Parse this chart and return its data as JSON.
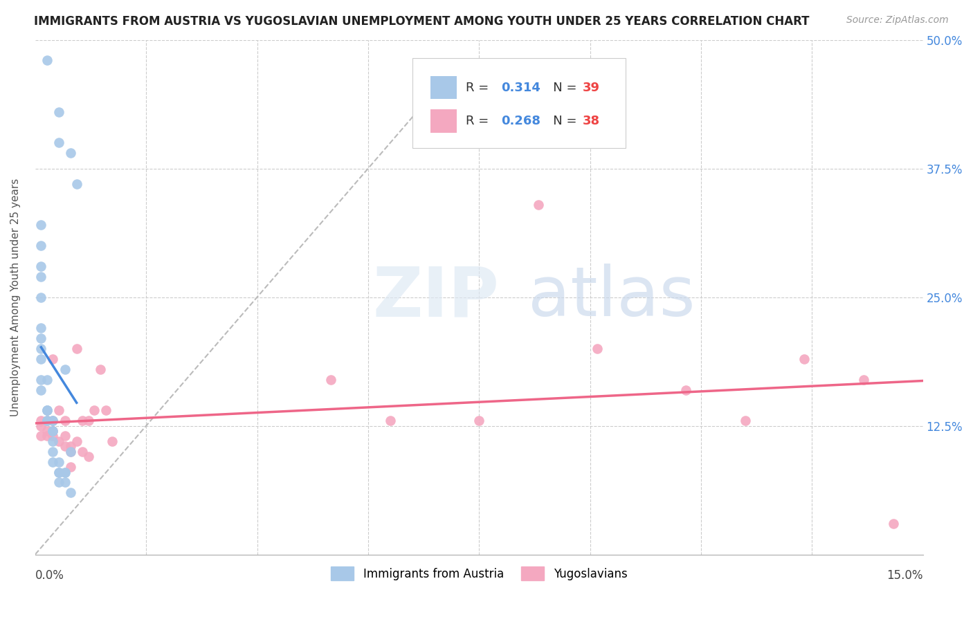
{
  "title": "IMMIGRANTS FROM AUSTRIA VS YUGOSLAVIAN UNEMPLOYMENT AMONG YOUTH UNDER 25 YEARS CORRELATION CHART",
  "source": "Source: ZipAtlas.com",
  "ylabel": "Unemployment Among Youth under 25 years",
  "legend_label1": "Immigrants from Austria",
  "legend_label2": "Yugoslavians",
  "color_austria": "#a8c8e8",
  "color_yugoslavia": "#f4a8c0",
  "color_line_austria": "#4488dd",
  "color_line_yugoslavia": "#ee6688",
  "color_trend_dashed": "#bbbbbb",
  "austria_x": [
    0.002,
    0.004,
    0.004,
    0.006,
    0.007,
    0.001,
    0.001,
    0.001,
    0.001,
    0.001,
    0.001,
    0.001,
    0.001,
    0.001,
    0.001,
    0.001,
    0.002,
    0.002,
    0.002,
    0.002,
    0.002,
    0.002,
    0.003,
    0.003,
    0.003,
    0.003,
    0.003,
    0.003,
    0.003,
    0.004,
    0.004,
    0.004,
    0.004,
    0.005,
    0.005,
    0.005,
    0.005,
    0.006,
    0.006
  ],
  "austria_y": [
    0.48,
    0.43,
    0.4,
    0.39,
    0.36,
    0.32,
    0.3,
    0.28,
    0.27,
    0.25,
    0.22,
    0.21,
    0.2,
    0.19,
    0.17,
    0.16,
    0.17,
    0.14,
    0.14,
    0.14,
    0.13,
    0.13,
    0.13,
    0.13,
    0.12,
    0.12,
    0.11,
    0.1,
    0.09,
    0.09,
    0.08,
    0.08,
    0.07,
    0.07,
    0.08,
    0.08,
    0.18,
    0.1,
    0.06
  ],
  "yugoslavia_x": [
    0.001,
    0.001,
    0.001,
    0.002,
    0.002,
    0.002,
    0.003,
    0.003,
    0.003,
    0.003,
    0.004,
    0.004,
    0.005,
    0.005,
    0.005,
    0.006,
    0.006,
    0.006,
    0.007,
    0.007,
    0.008,
    0.008,
    0.009,
    0.009,
    0.01,
    0.011,
    0.012,
    0.013,
    0.05,
    0.06,
    0.075,
    0.085,
    0.095,
    0.11,
    0.12,
    0.13,
    0.14,
    0.145
  ],
  "yugoslavia_y": [
    0.115,
    0.125,
    0.13,
    0.12,
    0.13,
    0.115,
    0.13,
    0.12,
    0.115,
    0.19,
    0.11,
    0.14,
    0.105,
    0.13,
    0.115,
    0.105,
    0.1,
    0.085,
    0.11,
    0.2,
    0.13,
    0.1,
    0.13,
    0.095,
    0.14,
    0.18,
    0.14,
    0.11,
    0.17,
    0.13,
    0.13,
    0.34,
    0.2,
    0.16,
    0.13,
    0.19,
    0.17,
    0.03
  ],
  "xmin": 0.0,
  "xmax": 0.15,
  "ymin": 0.0,
  "ymax": 0.5,
  "yticks": [
    0.0,
    0.125,
    0.25,
    0.375,
    0.5
  ],
  "ytick_labels": [
    "",
    "12.5%",
    "25.0%",
    "37.5%",
    "50.0%"
  ],
  "title_fontsize": 12,
  "source_fontsize": 10,
  "axis_label_fontsize": 11,
  "tick_fontsize": 12
}
